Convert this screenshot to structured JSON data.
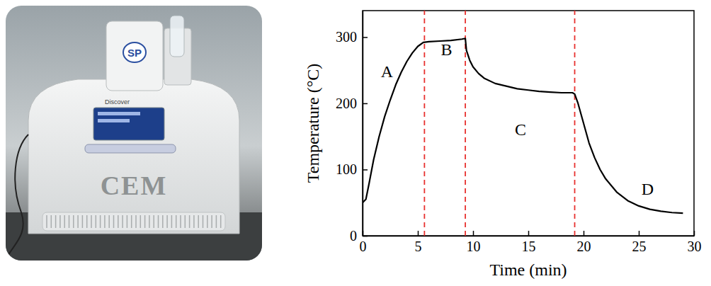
{
  "photo": {
    "brand": "CEM",
    "logo": "SP",
    "model": "Discover"
  },
  "chart_data": {
    "type": "line",
    "x_label": "Time (min)",
    "y_label": "Temperature (°C)",
    "x": [
      0,
      0.3,
      0.6,
      1,
      1.5,
      2,
      2.5,
      3,
      3.5,
      4,
      4.5,
      5,
      5.5,
      6,
      7,
      8,
      9,
      9.3,
      9.4,
      9.7,
      10,
      10.5,
      11,
      12,
      13,
      14,
      15,
      16,
      17,
      18,
      19,
      19.2,
      19.5,
      20,
      20.5,
      21,
      21.5,
      22,
      23,
      24,
      25,
      26,
      27,
      28,
      29
    ],
    "values": [
      50,
      55,
      80,
      115,
      150,
      180,
      205,
      228,
      247,
      263,
      276,
      286,
      292,
      293,
      294,
      295,
      297,
      298,
      280,
      265,
      255,
      245,
      238,
      230,
      226,
      222,
      220,
      218,
      217,
      216,
      216,
      214,
      200,
      170,
      140,
      118,
      100,
      86,
      66,
      53,
      45,
      40,
      37,
      35,
      34
    ],
    "color": "#000000",
    "xlim": [
      0,
      30
    ],
    "xticks": [
      0,
      5,
      10,
      15,
      20,
      25,
      30
    ],
    "ylim": [
      0,
      340
    ],
    "yticks": [
      0,
      100,
      200,
      300
    ],
    "vlines": {
      "x": [
        5.6,
        9.3,
        19.2
      ],
      "color": "#e8312f",
      "line_style": "dashed"
    },
    "annotations": [
      {
        "text": "A",
        "x": 2.2,
        "y": 245
      },
      {
        "text": "B",
        "x": 7.6,
        "y": 278
      },
      {
        "text": "C",
        "x": 14.3,
        "y": 158
      },
      {
        "text": "D",
        "x": 25.8,
        "y": 68
      }
    ],
    "grid": false
  }
}
